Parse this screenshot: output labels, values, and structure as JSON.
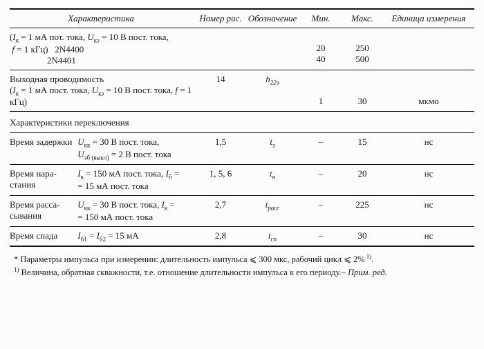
{
  "header": {
    "char": "Характеристика",
    "fig": "Номер рис.",
    "sym": "Обозначение",
    "min": "Мин.",
    "max": "Макс.",
    "unit": "Единица измерения"
  },
  "first_block": {
    "cond": "(Iк = 1 мА пот. тока, Uкэ = 10 В пост. тока,",
    "cond2": "f = 1 кГц)  2N4400",
    "cond3": "2N4401",
    "min_a": "20",
    "max_a": "250",
    "min_b": "40",
    "max_b": "500"
  },
  "conductance": {
    "title": "Выходная проводимость",
    "cond": "(Iк = 1 мА пост. тока, Uкэ = 10 В пост. тока, f = 1 кГц)",
    "fig": "14",
    "sym": "h22э",
    "min": "1",
    "max": "30",
    "unit": "мкмо"
  },
  "section_switch": "Характеристики переключения",
  "delay": {
    "name": "Время задержки",
    "cond1": "Uкк = 30 В пост. тока,",
    "cond2": "Uэб (выкл) = 2 В пост. тока",
    "fig": "1,5",
    "sym": "tз",
    "min": "–",
    "max": "15",
    "unit": "нс"
  },
  "rise": {
    "name": "Время нарастания",
    "cond1": "Iк = 150 мА пост. тока, Iб =",
    "cond2": "= 15 мА пост. тока",
    "fig": "1, 5, 6",
    "sym": "tн",
    "min": "–",
    "max": "20",
    "unit": "нс"
  },
  "storage": {
    "name": "Время рассасывания",
    "cond1": "Uкк = 30 В пост. тока, Iк =",
    "cond2": "= 150 мА пост. тока",
    "fig": "2,7",
    "sym": "tрасс",
    "min": "–",
    "max": "225",
    "unit": "нс"
  },
  "fall": {
    "name": "Время спада",
    "cond": "Iб1 = Iб2 = 15 мА",
    "fig": "2,8",
    "sym": "tсп",
    "min": "–",
    "max": "30",
    "unit": "нс"
  },
  "footnote1": "* Параметры импульса при измерении: длительность импульса ⩽ 300 мкс, рабочий цикл ⩽ 2% 1).",
  "footnote2": "1) Величина, обратная скважности, т.е. отношение длительности импульса к его периоду.– Прим. ред."
}
